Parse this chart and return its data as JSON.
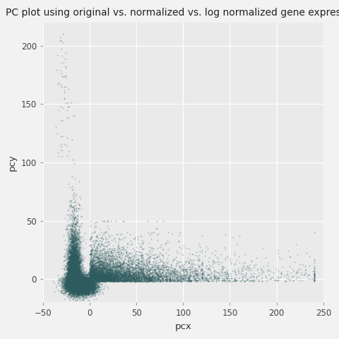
{
  "title": "PC plot using original vs. normalized vs. log normalized gene expression",
  "xlabel": "pcx",
  "ylabel": "pcy",
  "xlim": [
    -50,
    250
  ],
  "ylim": [
    -20,
    220
  ],
  "xticks": [
    -50,
    0,
    50,
    100,
    150,
    200,
    250
  ],
  "yticks": [
    0,
    50,
    100,
    150,
    200
  ],
  "point_color": "#2E5B5E",
  "point_alpha": 0.35,
  "point_size": 1.8,
  "plot_bg_color": "#EAEAEA",
  "fig_bg_color": "#F2F2F2",
  "grid_color": "#FFFFFF",
  "title_fontsize": 10,
  "axis_label_fontsize": 9.5,
  "tick_fontsize": 8.5,
  "random_seed": 42
}
